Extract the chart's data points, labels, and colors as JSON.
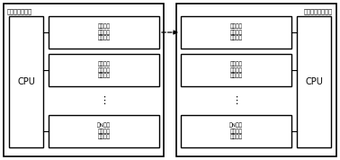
{
  "title_left": "源无线用户终端",
  "title_right": "目标无线用户终端",
  "cpu_label": "CPU",
  "left_modules": [
    "第一种距\n距离无线\n通信模块",
    "第二种距\n距离无线\n通信模块",
    "第N种距\n距离无线\n通信模块"
  ],
  "right_modules": [
    "第一种距\n距离无线\n通信模块",
    "第二种距\n距离无线\n通信模块",
    "第N种距\n距离无线\n通信模块"
  ],
  "bg_color": "#ffffff",
  "box_edge_color": "#000000",
  "box_fill": "#ffffff",
  "text_color": "#000000",
  "arrow_color": "#000000",
  "fig_width": 3.78,
  "fig_height": 1.78,
  "dpi": 100
}
